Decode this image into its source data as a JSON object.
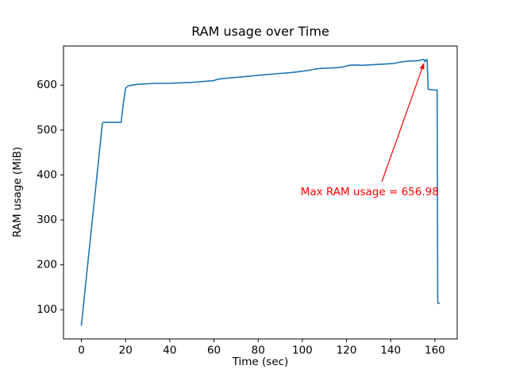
{
  "figure": {
    "background": "#ffffff"
  },
  "chart_data": {
    "type": "line",
    "title": "RAM usage over Time",
    "xlabel": "Time (sec)",
    "ylabel": "RAM usage (MiB)",
    "line_color": "#1f77b4",
    "frame_color": "#000000",
    "grid": false,
    "legend": "none",
    "xlim": [
      -8.1,
      170.1
    ],
    "ylim": [
      35,
      687
    ],
    "xticks": [
      0,
      20,
      40,
      60,
      80,
      100,
      120,
      140,
      160
    ],
    "yticks": [
      100,
      200,
      300,
      400,
      500,
      600
    ],
    "series": [
      {
        "name": "RAM usage",
        "x": [
          0,
          9.5,
          10,
          18,
          19,
          20,
          21,
          23,
          26,
          30,
          34,
          40,
          44,
          50,
          55,
          60,
          61,
          63,
          67,
          72,
          76,
          80,
          85,
          90,
          95,
          100,
          103,
          106,
          108,
          112,
          116,
          119,
          121,
          124,
          127,
          130,
          134,
          138,
          141,
          144,
          147,
          150,
          152,
          154,
          155,
          155.5,
          156,
          156.5,
          157,
          158,
          160,
          161,
          161.3,
          162
        ],
        "y": [
          65,
          515,
          517,
          517,
          560,
          593,
          598,
          600,
          602,
          603,
          604,
          604,
          605,
          606,
          608,
          610,
          612,
          614,
          616,
          618,
          620,
          622,
          624,
          626,
          628,
          631,
          633,
          636,
          637,
          638,
          639,
          641,
          644,
          645,
          644,
          645,
          646,
          647,
          648,
          651,
          653,
          654,
          654,
          656,
          656.98,
          652,
          657,
          656,
          591,
          590,
          589,
          589,
          115,
          114
        ]
      }
    ],
    "max_value": 656.98,
    "annotation": {
      "text": "Max RAM usage = 656.98",
      "color": "#ff0000",
      "arrow_tip": [
        155,
        648
      ],
      "arrow_tail": [
        136,
        385
      ],
      "text_pos": [
        130.5,
        372
      ]
    }
  }
}
